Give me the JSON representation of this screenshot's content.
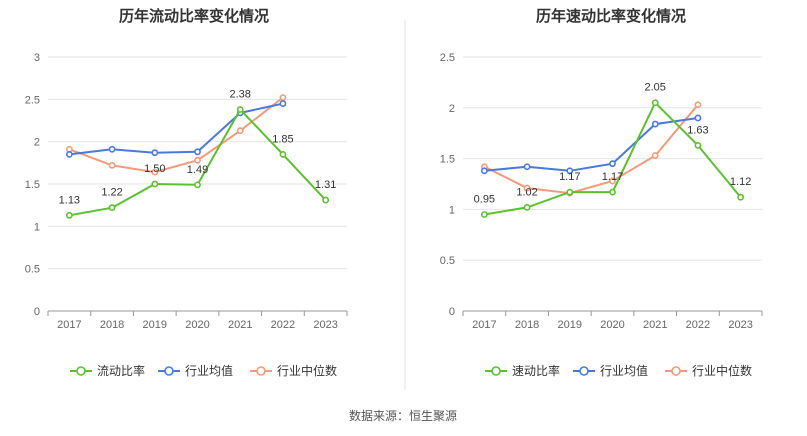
{
  "colors": {
    "series": [
      "#5bc22d",
      "#4a78e0",
      "#f59a79"
    ],
    "grid": "#e6e6e6",
    "axis": "#999999",
    "divider": "#e0e0e0"
  },
  "source": "数据来源：恒生聚源",
  "chart_data": [
    {
      "type": "line",
      "title": "历年流动比率变化情况",
      "x": [
        "2017",
        "2018",
        "2019",
        "2020",
        "2021",
        "2022",
        "2023"
      ],
      "ylim": [
        0,
        3
      ],
      "yticks": [
        "0",
        "0.5",
        "1",
        "1.5",
        "2",
        "2.5",
        "3"
      ],
      "grid": true,
      "legend": "bottom",
      "series": [
        {
          "name": "流动比率",
          "values": [
            1.13,
            1.22,
            1.5,
            1.49,
            2.38,
            1.85,
            1.31
          ],
          "labels": [
            "1.13",
            "1.22",
            "1.50",
            "1.49",
            "2.38",
            "1.85",
            "1.31"
          ]
        },
        {
          "name": "行业均值",
          "values": [
            1.85,
            1.91,
            1.87,
            1.88,
            2.34,
            2.45,
            null
          ]
        },
        {
          "name": "行业中位数",
          "values": [
            1.91,
            1.72,
            1.64,
            1.78,
            2.13,
            2.52,
            null
          ]
        }
      ]
    },
    {
      "type": "line",
      "title": "历年速动比率变化情况",
      "x": [
        "2017",
        "2018",
        "2019",
        "2020",
        "2021",
        "2022",
        "2023"
      ],
      "ylim": [
        0,
        2.5
      ],
      "yticks": [
        "0",
        "0.5",
        "1",
        "1.5",
        "2",
        "2.5"
      ],
      "grid": true,
      "legend": "bottom",
      "series": [
        {
          "name": "速动比率",
          "values": [
            0.95,
            1.02,
            1.17,
            1.17,
            2.05,
            1.63,
            1.12
          ],
          "labels": [
            "0.95",
            "1.02",
            "1.17",
            "1.17",
            "2.05",
            "1.63",
            "1.12"
          ]
        },
        {
          "name": "行业均值",
          "values": [
            1.38,
            1.42,
            1.38,
            1.45,
            1.84,
            1.9,
            null
          ]
        },
        {
          "name": "行业中位数",
          "values": [
            1.42,
            1.21,
            1.16,
            1.28,
            1.53,
            2.03,
            null
          ]
        }
      ]
    }
  ]
}
